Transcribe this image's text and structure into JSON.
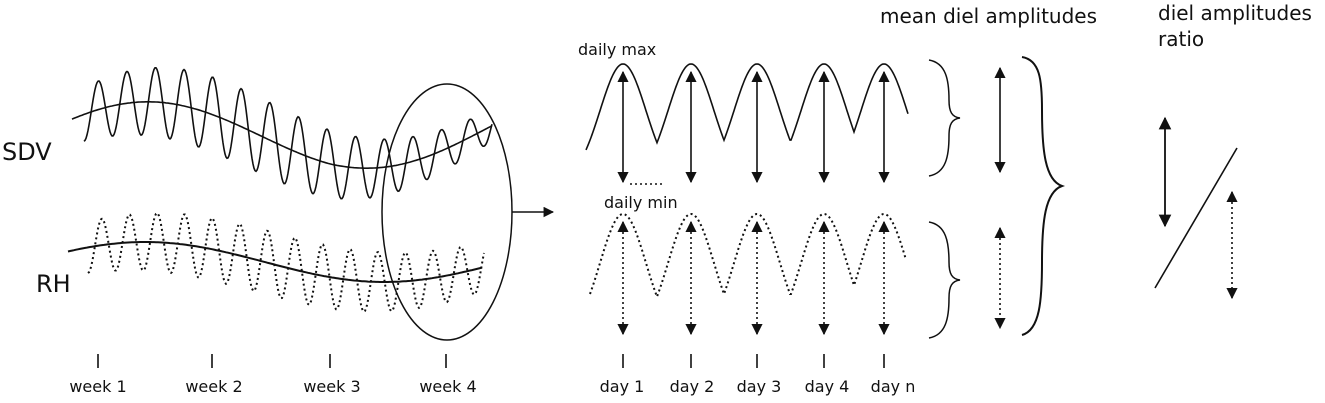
{
  "series_labels": {
    "sdv": "SDV",
    "rh": "RH"
  },
  "weeks": [
    "week 1",
    "week 2",
    "week 3",
    "week 4"
  ],
  "days": [
    "day 1",
    "day 2",
    "day 3",
    "day 4",
    "day n"
  ],
  "annotations": {
    "daily_max": "daily max",
    "daily_min": "daily min"
  },
  "headers": {
    "mean_amplitudes": "mean diel amplitudes",
    "ratio_line1": "diel amplitudes",
    "ratio_line2": "ratio"
  },
  "styles": {
    "sdv_line": "solid",
    "rh_line": "dotted",
    "color": "#111111"
  }
}
